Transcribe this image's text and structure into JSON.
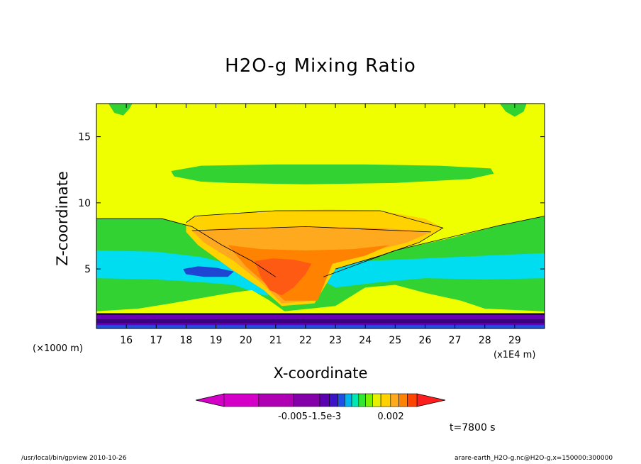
{
  "chart_data": {
    "type": "contour",
    "title": "H2O-g Mixing Ratio",
    "xlabel": "X-coordinate",
    "ylabel": "Z-coordinate",
    "x_unit_label": "(×1000 m)",
    "x_scale_label": "(x1E4 m)",
    "time_label": "t=7800 s",
    "xlim": [
      15.0,
      30.0
    ],
    "ylim": [
      0.5,
      17.5
    ],
    "x_ticks": [
      16,
      17,
      18,
      19,
      20,
      21,
      22,
      23,
      24,
      25,
      26,
      27,
      28,
      29
    ],
    "y_ticks": [
      5,
      10,
      15
    ],
    "colorbar": {
      "tick_labels": [
        "-0.005",
        "-1.5e-3",
        "0.002"
      ],
      "colors": [
        "#d400c8",
        "#b000b4",
        "#8400a8",
        "#5a00b0",
        "#3c14c8",
        "#1e50e6",
        "#00b4f0",
        "#00e6b4",
        "#32e632",
        "#7cf000",
        "#e6f000",
        "#ffd200",
        "#ffaa1e",
        "#ff8200",
        "#ff4400",
        "#ff1e1e"
      ]
    },
    "regions": {
      "background": "#f0ff00",
      "upper_band": "#32d232",
      "mid_band": "#32d232",
      "cyan_band": "#00dcf0",
      "blue_core": "#1e46d2",
      "anvil_outer": "#ffd200",
      "anvil_mid": "#ffaa1e",
      "core_orange": "#ff8200",
      "core_red": "#ff5a14",
      "surface_purple": "#6a00b4",
      "surface_dark": "#3a0080"
    }
  },
  "footer": {
    "left": "/usr/local/bin/gpview  2010-10-26",
    "right": "arare-earth_H2O-g.nc@H2O-g,x=150000:300000"
  }
}
